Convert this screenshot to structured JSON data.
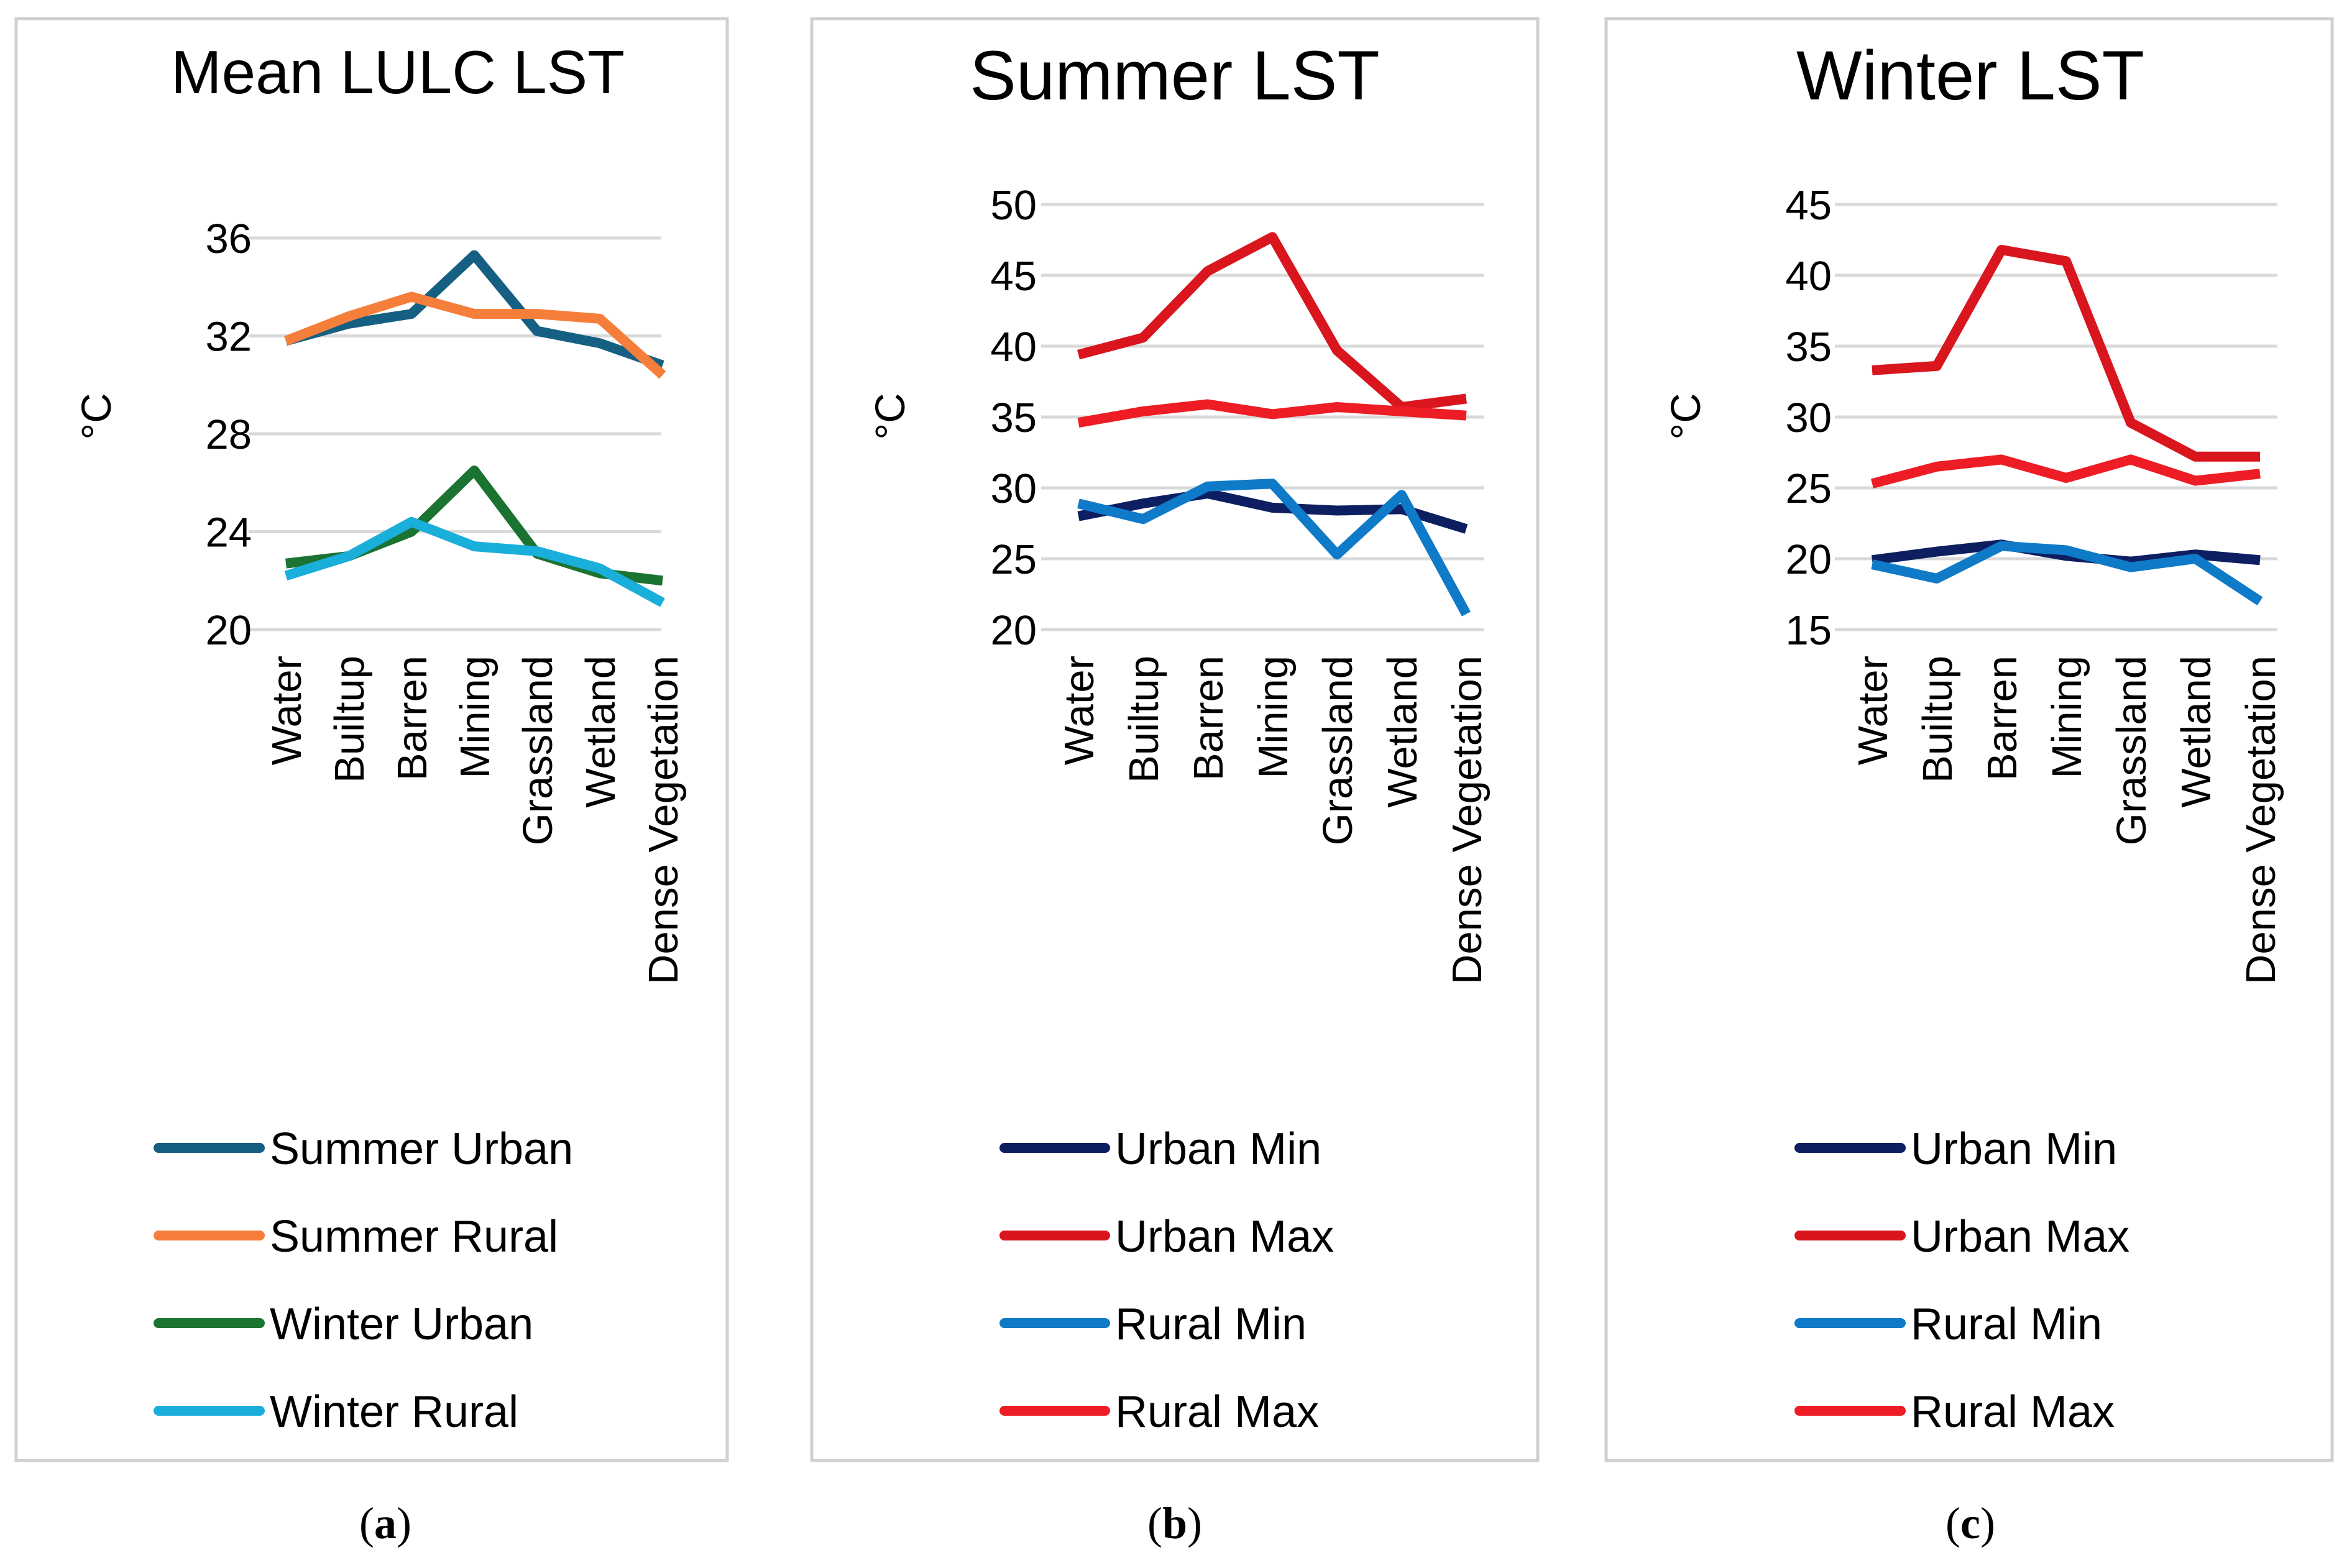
{
  "chart_data": [
    {
      "type": "line",
      "title": "Mean LULC LST",
      "ylabel": "°C",
      "xlabel": "",
      "categories": [
        "Water",
        "Builtup",
        "Barren",
        "Mining",
        "Grassland",
        "Wetland",
        "Dense Vegetation"
      ],
      "ylim": [
        20,
        36
      ],
      "yticks": [
        "20",
        "24",
        "28",
        "32",
        "36"
      ],
      "ytick_values": [
        20,
        24,
        28,
        32,
        36
      ],
      "grid": true,
      "legend_position": "bottom",
      "caption_letter": "a",
      "series": [
        {
          "name": "Summer Urban",
          "color": "#156082",
          "values": [
            31.8,
            32.5,
            32.9,
            35.3,
            32.2,
            31.7,
            30.8
          ]
        },
        {
          "name": "Summer Rural",
          "color": "#F57F3A",
          "values": [
            31.8,
            32.8,
            33.6,
            32.9,
            32.9,
            32.7,
            30.4
          ]
        },
        {
          "name": "Winter Urban",
          "color": "#1B7331",
          "values": [
            22.7,
            23.0,
            24.0,
            26.5,
            23.1,
            22.3,
            22.0
          ]
        },
        {
          "name": "Winter Rural",
          "color": "#1AAEDB",
          "values": [
            22.2,
            23.0,
            24.4,
            23.4,
            23.2,
            22.5,
            21.1
          ]
        }
      ]
    },
    {
      "type": "line",
      "title": "Summer LST",
      "ylabel": "°C",
      "xlabel": "",
      "categories": [
        "Water",
        "Builtup",
        "Barren",
        "Mining",
        "Grassland",
        "Wetland",
        "Dense Vegetation"
      ],
      "ylim": [
        20,
        50
      ],
      "yticks": [
        "20",
        "25",
        "30",
        "35",
        "40",
        "45",
        "50"
      ],
      "ytick_values": [
        20,
        25,
        30,
        35,
        40,
        45,
        50
      ],
      "grid": true,
      "legend_position": "bottom",
      "caption_letter": "b",
      "series": [
        {
          "name": "Urban Min",
          "color": "#0D1F61",
          "values": [
            28.0,
            28.9,
            29.6,
            28.6,
            28.4,
            28.5,
            27.1
          ]
        },
        {
          "name": "Urban Max",
          "color": "#D9151D",
          "values": [
            39.4,
            40.6,
            45.3,
            47.7,
            39.7,
            35.7,
            36.3
          ]
        },
        {
          "name": "Rural Min",
          "color": "#0F7AC8",
          "values": [
            28.9,
            27.8,
            30.1,
            30.3,
            25.3,
            29.5,
            21.1
          ]
        },
        {
          "name": "Rural Max",
          "color": "#EE1C24",
          "values": [
            34.6,
            35.4,
            35.9,
            35.2,
            35.7,
            35.4,
            35.1
          ]
        }
      ]
    },
    {
      "type": "line",
      "title": "Winter LST",
      "ylabel": "°C",
      "xlabel": "",
      "categories": [
        "Water",
        "Builtup",
        "Barren",
        "Mining",
        "Grassland",
        "Wetland",
        "Dense Vegetation"
      ],
      "ylim": [
        15,
        45
      ],
      "yticks": [
        "15",
        "20",
        "25",
        "30",
        "35",
        "40",
        "45"
      ],
      "ytick_values": [
        15,
        20,
        25,
        30,
        35,
        40,
        45
      ],
      "grid": true,
      "legend_position": "bottom",
      "caption_letter": "c",
      "series": [
        {
          "name": "Urban Min",
          "color": "#0D1F61",
          "values": [
            19.9,
            20.5,
            21.0,
            20.2,
            19.8,
            20.3,
            19.9
          ]
        },
        {
          "name": "Urban Max",
          "color": "#D9151D",
          "values": [
            33.3,
            33.6,
            41.8,
            41.0,
            29.6,
            27.2,
            27.2
          ]
        },
        {
          "name": "Rural Min",
          "color": "#0F7AC8",
          "values": [
            19.6,
            18.6,
            20.9,
            20.6,
            19.4,
            20.0,
            17.0
          ]
        },
        {
          "name": "Rural Max",
          "color": "#EE1C24",
          "values": [
            25.3,
            26.5,
            27.0,
            25.7,
            27.0,
            25.5,
            26.0
          ]
        }
      ]
    }
  ]
}
